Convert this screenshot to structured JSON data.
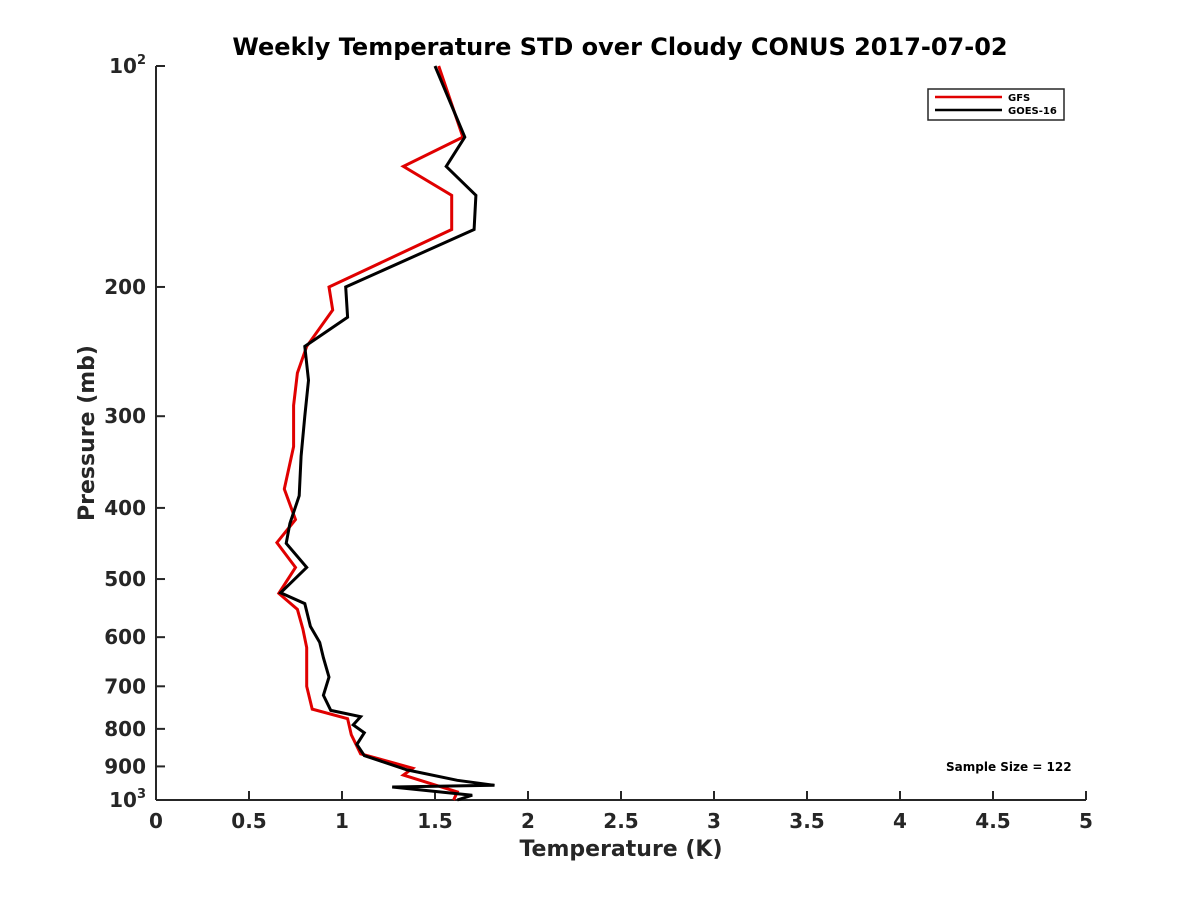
{
  "chart_data": {
    "type": "line",
    "title": "Weekly Temperature STD over Cloudy CONUS 2017-07-02",
    "xlabel": "Temperature (K)",
    "ylabel": "Pressure (mb)",
    "xlim": [
      0,
      5
    ],
    "ylim": [
      1000,
      100
    ],
    "y_scale": "log",
    "y_reversed": true,
    "grid": false,
    "legend_position": "top-right",
    "x_ticks": [
      "0",
      "0.5",
      "1",
      "1.5",
      "2",
      "2.5",
      "3",
      "3.5",
      "4",
      "4.5",
      "5"
    ],
    "x_tick_values": [
      0,
      0.5,
      1,
      1.5,
      2,
      2.5,
      3,
      3.5,
      4,
      4.5,
      5
    ],
    "y_ticks": [
      {
        "value": 100,
        "base": "10",
        "exp": "2"
      },
      {
        "value": 200,
        "base": "200",
        "exp": ""
      },
      {
        "value": 300,
        "base": "300",
        "exp": ""
      },
      {
        "value": 400,
        "base": "400",
        "exp": ""
      },
      {
        "value": 500,
        "base": "500",
        "exp": ""
      },
      {
        "value": 600,
        "base": "600",
        "exp": ""
      },
      {
        "value": 700,
        "base": "700",
        "exp": ""
      },
      {
        "value": 800,
        "base": "800",
        "exp": ""
      },
      {
        "value": 900,
        "base": "900",
        "exp": ""
      },
      {
        "value": 1000,
        "base": "10",
        "exp": "3"
      }
    ],
    "annotation": "Sample Size = 122",
    "series": [
      {
        "name": "GFS",
        "color": "#e00000",
        "points": [
          [
            1.52,
            100
          ],
          [
            1.65,
            125
          ],
          [
            1.33,
            137
          ],
          [
            1.59,
            150
          ],
          [
            1.59,
            167
          ],
          [
            0.93,
            200
          ],
          [
            0.95,
            215
          ],
          [
            0.81,
            241
          ],
          [
            0.76,
            262
          ],
          [
            0.74,
            290
          ],
          [
            0.74,
            330
          ],
          [
            0.69,
            377
          ],
          [
            0.75,
            415
          ],
          [
            0.65,
            446
          ],
          [
            0.75,
            482
          ],
          [
            0.66,
            523
          ],
          [
            0.76,
            550
          ],
          [
            0.79,
            585
          ],
          [
            0.81,
            620
          ],
          [
            0.81,
            660
          ],
          [
            0.81,
            700
          ],
          [
            0.84,
            752
          ],
          [
            1.03,
            775
          ],
          [
            1.05,
            815
          ],
          [
            1.1,
            865
          ],
          [
            1.38,
            905
          ],
          [
            1.33,
            925
          ],
          [
            1.62,
            975
          ],
          [
            1.6,
            1000
          ]
        ]
      },
      {
        "name": "GOES-16",
        "color": "#000000",
        "points": [
          [
            1.5,
            100
          ],
          [
            1.66,
            125
          ],
          [
            1.56,
            137
          ],
          [
            1.72,
            150
          ],
          [
            1.71,
            167
          ],
          [
            1.02,
            200
          ],
          [
            1.03,
            220
          ],
          [
            0.8,
            241
          ],
          [
            0.82,
            268
          ],
          [
            0.8,
            300
          ],
          [
            0.78,
            340
          ],
          [
            0.77,
            385
          ],
          [
            0.72,
            420
          ],
          [
            0.7,
            447
          ],
          [
            0.81,
            482
          ],
          [
            0.67,
            522
          ],
          [
            0.8,
            540
          ],
          [
            0.83,
            580
          ],
          [
            0.88,
            610
          ],
          [
            0.9,
            640
          ],
          [
            0.93,
            680
          ],
          [
            0.9,
            720
          ],
          [
            0.94,
            755
          ],
          [
            1.1,
            770
          ],
          [
            1.06,
            790
          ],
          [
            1.12,
            810
          ],
          [
            1.08,
            840
          ],
          [
            1.12,
            870
          ],
          [
            1.35,
            910
          ],
          [
            1.62,
            940
          ],
          [
            1.82,
            955
          ],
          [
            1.27,
            960
          ],
          [
            1.7,
            985
          ],
          [
            1.62,
            1000
          ]
        ]
      }
    ]
  }
}
